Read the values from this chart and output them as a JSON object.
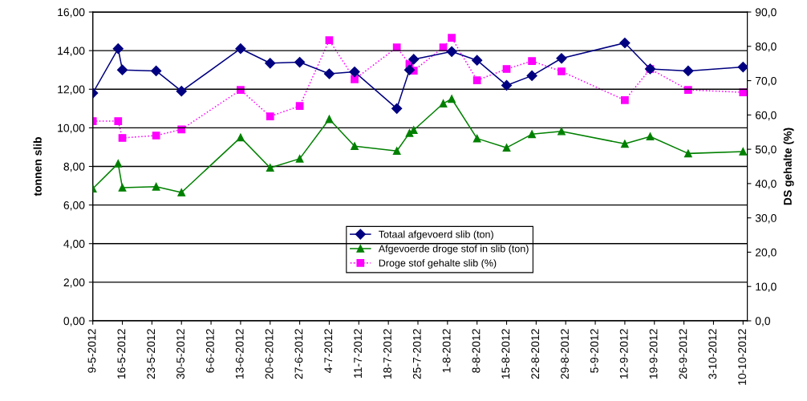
{
  "chart_data": {
    "type": "line",
    "ylabel": "tonnen slib",
    "y2label": "DS gehalte (%)",
    "series": [
      {
        "name": "Totaal afgevoerd slib (ton)",
        "color": "#000080",
        "marker": "diamond",
        "line_style": "solid",
        "x": [
          "2012-05-09",
          "2012-05-15",
          "2012-05-16",
          "2012-05-24",
          "2012-05-30",
          "2012-06-13",
          "2012-06-20",
          "2012-06-27",
          "2012-07-04",
          "2012-07-10",
          "2012-07-20",
          "2012-07-23",
          "2012-07-24",
          "2012-08-02",
          "2012-08-08",
          "2012-08-15",
          "2012-08-21",
          "2012-08-28",
          "2012-09-12",
          "2012-09-18",
          "2012-09-27",
          "2012-10-10"
        ],
        "values": [
          11.8,
          14.1,
          13.0,
          12.95,
          11.9,
          14.1,
          13.35,
          13.4,
          12.8,
          12.9,
          11.0,
          13.0,
          13.55,
          13.95,
          13.5,
          12.2,
          12.7,
          13.6,
          14.4,
          13.05,
          12.95,
          13.15
        ]
      },
      {
        "name": "Afgevoerde droge stof in slib (ton)",
        "color": "#008000",
        "marker": "triangle",
        "line_style": "solid",
        "x": [
          "2012-05-09",
          "2012-05-15",
          "2012-05-16",
          "2012-05-24",
          "2012-05-30",
          "2012-06-13",
          "2012-06-20",
          "2012-06-27",
          "2012-07-04",
          "2012-07-10",
          "2012-07-20",
          "2012-07-23",
          "2012-07-24",
          "2012-07-31",
          "2012-08-02",
          "2012-08-08",
          "2012-08-15",
          "2012-08-21",
          "2012-08-28",
          "2012-09-12",
          "2012-09-18",
          "2012-09-27",
          "2012-10-10"
        ],
        "values": [
          6.85,
          8.15,
          6.9,
          6.95,
          6.65,
          9.5,
          7.93,
          8.4,
          10.45,
          9.05,
          8.8,
          9.73,
          9.88,
          11.26,
          11.5,
          9.45,
          8.97,
          9.67,
          9.82,
          9.17,
          9.55,
          8.67,
          8.77
        ]
      },
      {
        "name": "Droge stof gehalte slib (%)",
        "color": "#ff00ff",
        "marker": "square",
        "line_style": "dotted",
        "axis": "y2",
        "x": [
          "2012-05-09",
          "2012-05-15",
          "2012-05-16",
          "2012-05-24",
          "2012-05-30",
          "2012-06-13",
          "2012-06-20",
          "2012-06-27",
          "2012-07-04",
          "2012-07-10",
          "2012-07-20",
          "2012-07-23",
          "2012-07-24",
          "2012-07-31",
          "2012-08-02",
          "2012-08-08",
          "2012-08-15",
          "2012-08-21",
          "2012-08-28",
          "2012-09-12",
          "2012-09-18",
          "2012-09-27",
          "2012-10-10"
        ],
        "values": [
          58.2,
          58.2,
          53.3,
          54.0,
          55.8,
          67.3,
          59.6,
          62.6,
          81.8,
          70.4,
          79.7,
          74.8,
          72.9,
          79.7,
          82.5,
          70.1,
          73.4,
          75.7,
          72.7,
          64.3,
          73.4,
          67.3,
          66.6
        ]
      }
    ],
    "xlim": [
      "2012-05-09",
      "2012-10-11"
    ],
    "xticks": [
      {
        "value": "2012-05-09",
        "label": "9-5-2012"
      },
      {
        "value": "2012-05-16",
        "label": "16-5-2012"
      },
      {
        "value": "2012-05-23",
        "label": "23-5-2012"
      },
      {
        "value": "2012-05-30",
        "label": "30-5-2012"
      },
      {
        "value": "2012-06-06",
        "label": "6-6-2012"
      },
      {
        "value": "2012-06-13",
        "label": "13-6-2012"
      },
      {
        "value": "2012-06-20",
        "label": "20-6-2012"
      },
      {
        "value": "2012-06-27",
        "label": "27-6-2012"
      },
      {
        "value": "2012-07-04",
        "label": "4-7-2012"
      },
      {
        "value": "2012-07-11",
        "label": "11-7-2012"
      },
      {
        "value": "2012-07-18",
        "label": "18-7-2012"
      },
      {
        "value": "2012-07-25",
        "label": "25-7-2012"
      },
      {
        "value": "2012-08-01",
        "label": "1-8-2012"
      },
      {
        "value": "2012-08-08",
        "label": "8-8-2012"
      },
      {
        "value": "2012-08-15",
        "label": "15-8-2012"
      },
      {
        "value": "2012-08-22",
        "label": "22-8-2012"
      },
      {
        "value": "2012-08-29",
        "label": "29-8-2012"
      },
      {
        "value": "2012-09-05",
        "label": "5-9-2012"
      },
      {
        "value": "2012-09-12",
        "label": "12-9-2012"
      },
      {
        "value": "2012-09-19",
        "label": "19-9-2012"
      },
      {
        "value": "2012-09-26",
        "label": "26-9-2012"
      },
      {
        "value": "2012-10-03",
        "label": "3-10-2012"
      },
      {
        "value": "2012-10-10",
        "label": "10-10-2012"
      }
    ],
    "ylim": [
      0,
      16
    ],
    "yticks": [
      {
        "value": 0,
        "label": "0,00"
      },
      {
        "value": 2,
        "label": "2,00"
      },
      {
        "value": 4,
        "label": "4,00"
      },
      {
        "value": 6,
        "label": "6,00"
      },
      {
        "value": 8,
        "label": "8,00"
      },
      {
        "value": 10,
        "label": "10,00"
      },
      {
        "value": 12,
        "label": "12,00"
      },
      {
        "value": 14,
        "label": "14,00"
      },
      {
        "value": 16,
        "label": "16,00"
      }
    ],
    "y2lim": [
      0,
      90
    ],
    "y2ticks": [
      {
        "value": 0,
        "label": "0,0"
      },
      {
        "value": 10,
        "label": "10,0"
      },
      {
        "value": 20,
        "label": "20,0"
      },
      {
        "value": 30,
        "label": "30,0"
      },
      {
        "value": 40,
        "label": "40,0"
      },
      {
        "value": 50,
        "label": "50,0"
      },
      {
        "value": 60,
        "label": "60,0"
      },
      {
        "value": 70,
        "label": "70,0"
      },
      {
        "value": 80,
        "label": "80,0"
      },
      {
        "value": 90,
        "label": "90,0"
      }
    ],
    "grid": "y",
    "legend": "bottom"
  }
}
